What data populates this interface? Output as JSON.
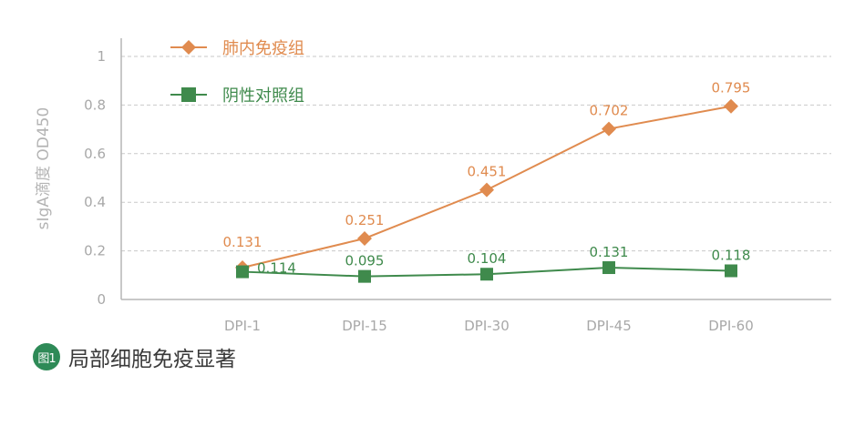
{
  "chart_data": {
    "type": "line",
    "categories": [
      "DPI-1",
      "DPI-15",
      "DPI-30",
      "DPI-45",
      "DPI-60"
    ],
    "series": [
      {
        "name": "肺内免疫组",
        "color": "#e08b4f",
        "marker": "diamond",
        "values": [
          0.131,
          0.251,
          0.451,
          0.702,
          0.795
        ],
        "labels": [
          "0.131",
          "0.251",
          "0.451",
          "0.702",
          "0.795"
        ]
      },
      {
        "name": "阴性对照组",
        "color": "#3f8a4c",
        "marker": "square",
        "values": [
          0.114,
          0.095,
          0.104,
          0.131,
          0.118
        ],
        "labels": [
          "0.114",
          "0.095",
          "0.104",
          "0.131",
          "0.118"
        ]
      }
    ],
    "ylabel": "sIgA滴度 OD450",
    "xlabel": "",
    "ylim": [
      0,
      1
    ],
    "yticks": [
      "0",
      "0.2",
      "0.4",
      "0.6",
      "0.8",
      "1"
    ],
    "grid": "horizontal dashed",
    "legend": "top-left"
  },
  "caption": {
    "badge": "图1",
    "text": "局部细胞免疫显著"
  }
}
